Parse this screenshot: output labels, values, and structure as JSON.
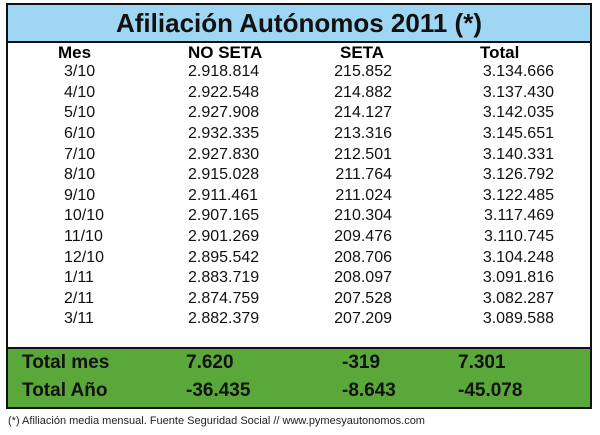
{
  "title": "Afiliación Autónomos 2011 (*)",
  "headers": {
    "mes": "Mes",
    "noseta": "NO SETA",
    "seta": "SETA",
    "total": "Total"
  },
  "rows": [
    {
      "mes": "3/10",
      "noseta": "2.918.814",
      "seta": "215.852",
      "total": "3.134.666"
    },
    {
      "mes": "4/10",
      "noseta": "2.922.548",
      "seta": "214.882",
      "total": "3.137.430"
    },
    {
      "mes": "5/10",
      "noseta": "2.927.908",
      "seta": "214.127",
      "total": "3.142.035"
    },
    {
      "mes": "6/10",
      "noseta": "2.932.335",
      "seta": "213.316",
      "total": "3.145.651"
    },
    {
      "mes": "7/10",
      "noseta": "2.927.830",
      "seta": "212.501",
      "total": "3.140.331"
    },
    {
      "mes": "8/10",
      "noseta": "2.915.028",
      "seta": "211.764",
      "total": "3.126.792"
    },
    {
      "mes": "9/10",
      "noseta": "2.911.461",
      "seta": "211.024",
      "total": "3.122.485"
    },
    {
      "mes": "10/10",
      "noseta": "2.907.165",
      "seta": "210.304",
      "total": "3.117.469"
    },
    {
      "mes": "11/10",
      "noseta": "2.901.269",
      "seta": "209.476",
      "total": "3.110.745"
    },
    {
      "mes": "12/10",
      "noseta": "2.895.542",
      "seta": "208.706",
      "total": "3.104.248"
    },
    {
      "mes": "1/11",
      "noseta": "2.883.719",
      "seta": "208.097",
      "total": "3.091.816"
    },
    {
      "mes": "2/11",
      "noseta": "2.874.759",
      "seta": "207.528",
      "total": "3.082.287"
    },
    {
      "mes": "3/11",
      "noseta": "2.882.379",
      "seta": "207.209",
      "total": "3.089.588"
    }
  ],
  "summary": [
    {
      "label": "Total mes",
      "noseta": "7.620",
      "seta": "-319",
      "total": "7.301"
    },
    {
      "label": "Total Año",
      "noseta": "-36.435",
      "seta": "-8.643",
      "total": "-45.078"
    }
  ],
  "footnote": "(*) Afiliación media mensual. Fuente Seguridad Social // www.pymesyautonomos.com",
  "colors": {
    "title_bg": "#9fd6f3",
    "summary_bg": "#5aa83a"
  }
}
